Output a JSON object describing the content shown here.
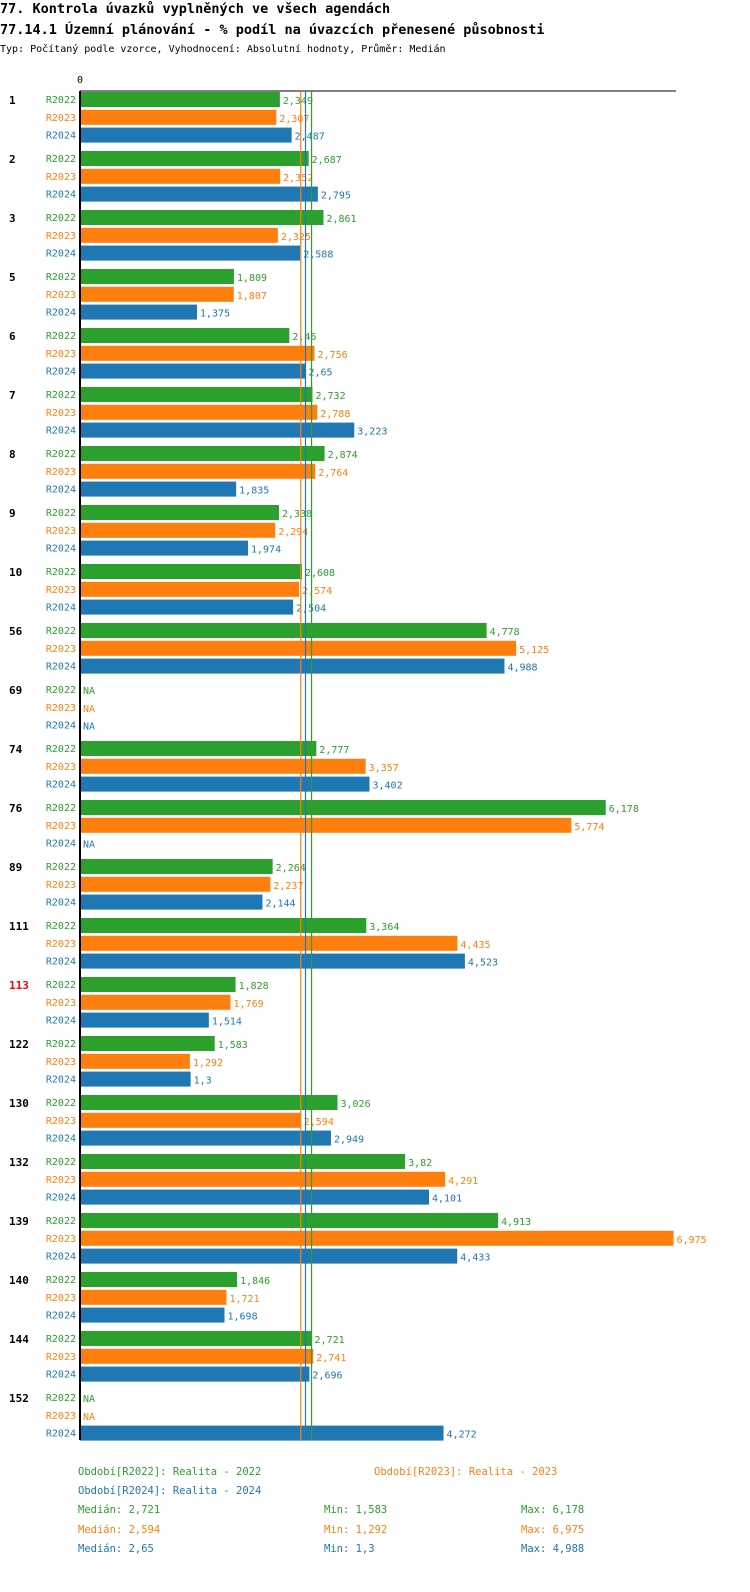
{
  "title": "77. Kontrola úvazků vyplněných ve všech agendách",
  "subtitle": "77.14.1 Územní plánování - % podíl na úvazcích přenesené působnosti",
  "description": "Typ: Počítaný podle vzorce, Vyhodnocení: Absolutní hodnoty, Průměr: Medián",
  "colors": {
    "R2022": "#2ca02c",
    "R2023": "#ff7f0e",
    "R2024": "#1f77b4",
    "highlight": "#ff0000"
  },
  "chart_data": {
    "type": "bar",
    "orientation": "horizontal",
    "axis_zero_label": "0",
    "xlim": [
      0,
      7.26
    ],
    "series_names": [
      "R2022",
      "R2023",
      "R2024"
    ],
    "highlight_category": "113",
    "categories": [
      "1",
      "2",
      "3",
      "5",
      "6",
      "7",
      "8",
      "9",
      "10",
      "56",
      "69",
      "74",
      "76",
      "89",
      "111",
      "113",
      "122",
      "130",
      "132",
      "139",
      "140",
      "144",
      "152"
    ],
    "series": [
      {
        "name": "R2022",
        "values": [
          2.349,
          2.687,
          2.861,
          1.809,
          2.46,
          2.732,
          2.874,
          2.338,
          2.608,
          4.778,
          null,
          2.777,
          6.178,
          2.264,
          3.364,
          1.828,
          1.583,
          3.026,
          3.82,
          4.913,
          1.846,
          2.721,
          null
        ],
        "labels": [
          "2,349",
          "2,687",
          "2,861",
          "1,809",
          "2,46",
          "2,732",
          "2,874",
          "2,338",
          "2,608",
          "4,778",
          "NA",
          "2,777",
          "6,178",
          "2,264",
          "3,364",
          "1,828",
          "1,583",
          "3,026",
          "3,82",
          "4,913",
          "1,846",
          "2,721",
          "NA"
        ]
      },
      {
        "name": "R2023",
        "values": [
          2.307,
          2.352,
          2.325,
          1.807,
          2.756,
          2.788,
          2.764,
          2.294,
          2.574,
          5.125,
          null,
          3.357,
          5.774,
          2.237,
          4.435,
          1.769,
          1.292,
          2.594,
          4.291,
          6.975,
          1.721,
          2.741,
          null
        ],
        "labels": [
          "2,307",
          "2,352",
          "2,325",
          "1,807",
          "2,756",
          "2,788",
          "2,764",
          "2,294",
          "2,574",
          "5,125",
          "NA",
          "3,357",
          "5,774",
          "2,237",
          "4,435",
          "1,769",
          "1,292",
          "2,594",
          "4,291",
          "6,975",
          "1,721",
          "2,741",
          "NA"
        ]
      },
      {
        "name": "R2024",
        "values": [
          2.487,
          2.795,
          2.588,
          1.375,
          2.65,
          3.223,
          1.835,
          1.974,
          2.504,
          4.988,
          null,
          3.402,
          null,
          2.144,
          4.523,
          1.514,
          1.3,
          2.949,
          4.101,
          4.433,
          1.698,
          2.696,
          4.272
        ],
        "labels": [
          "2,487",
          "2,795",
          "2,588",
          "1,375",
          "2,65",
          "3,223",
          "1,835",
          "1,974",
          "2,504",
          "4,988",
          "NA",
          "3,402",
          "NA",
          "2,144",
          "4,523",
          "1,514",
          "1,3",
          "2,949",
          "4,101",
          "4,433",
          "1,698",
          "2,696",
          "4,272"
        ]
      }
    ],
    "medians": [
      2.721,
      2.594,
      2.65
    ]
  },
  "legend": {
    "r2022": "Období[R2022]: Realita - 2022",
    "r2023": "Období[R2023]: Realita - 2023",
    "r2024": "Období[R2024]: Realita - 2024",
    "stats": [
      {
        "median": "Medián: 2,721",
        "min": "Min: 1,583",
        "max": "Max: 6,178"
      },
      {
        "median": "Medián: 2,594",
        "min": "Min: 1,292",
        "max": "Max: 6,975"
      },
      {
        "median": "Medián: 2,65",
        "min": "Min: 1,3",
        "max": "Max: 4,988"
      }
    ]
  }
}
